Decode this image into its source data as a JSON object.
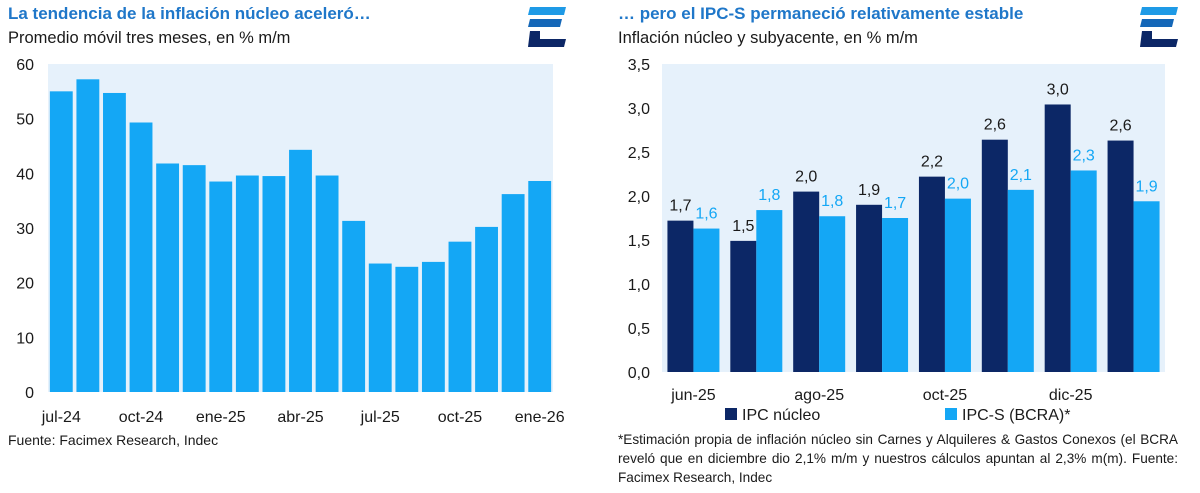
{
  "colors": {
    "title": "#1f77c9",
    "bright_blue": "#14a7f5",
    "navy": "#0c2766",
    "plot_bg": "#e6f1fb",
    "logo_top": "#1e9ae6",
    "logo_mid": "#1467b8",
    "logo_bot": "#0c2766"
  },
  "left": {
    "title": "La tendencia de la inflación núcleo aceleró…",
    "subtitle": "Promedio móvil tres meses, en % m/m",
    "logo": "facimex-logo-icon",
    "source": "Fuente: Facimex Research, Indec"
  },
  "right": {
    "title": "… pero el IPC-S permaneció relativamente estable",
    "subtitle": "Inflación núcleo y subyacente, en % m/m",
    "logo": "facimex-logo-icon",
    "note": "*Estimación propia de inflación núcleo sin Carnes y Alquileres & Gastos Conexos (el BCRA reveló que en diciembre dio 2,1% m/m y nuestros cálculos apuntan al 2,3% m(m). Fuente: Facimex Research, Indec"
  },
  "chart_data": [
    {
      "type": "bar",
      "title": "La tendencia de la inflación núcleo aceleró…",
      "subtitle": "Promedio móvil tres meses, en % m/m",
      "categories": [
        "jul-24",
        "ago-24",
        "sep-24",
        "oct-24",
        "nov-24",
        "dic-24",
        "ene-25",
        "feb-25",
        "mar-25",
        "abr-25",
        "may-25",
        "jun-25",
        "jul-25",
        "ago-25",
        "sep-25",
        "oct-25",
        "nov-25",
        "dic-25",
        "ene-26"
      ],
      "tick_labels": [
        "jul-24",
        "oct-24",
        "ene-25",
        "abr-25",
        "jul-25",
        "oct-25",
        "ene-26"
      ],
      "values": [
        55.0,
        57.2,
        54.7,
        49.3,
        41.8,
        41.5,
        38.5,
        39.6,
        39.5,
        44.3,
        39.6,
        31.3,
        23.5,
        22.9,
        23.8,
        27.5,
        30.2,
        36.2,
        38.6
      ],
      "yticks": [
        "0",
        "10",
        "20",
        "30",
        "40",
        "50",
        "60"
      ],
      "ylim": [
        0,
        60
      ],
      "xlabel": "",
      "ylabel": "",
      "grid": false
    },
    {
      "type": "bar",
      "title": "… pero el IPC-S permaneció relativamente estable",
      "subtitle": "Inflación núcleo y subyacente, en % m/m",
      "categories": [
        "jun-25",
        "jul-25",
        "ago-25",
        "sep-25",
        "oct-25",
        "nov-25",
        "dic-25",
        "ene-26"
      ],
      "tick_labels": [
        "jun-25",
        "ago-25",
        "oct-25",
        "dic-25"
      ],
      "series": [
        {
          "name": "IPC núcleo",
          "values": [
            1.72,
            1.49,
            2.05,
            1.9,
            2.22,
            2.64,
            3.04,
            2.63
          ],
          "labels": [
            "1,7",
            "1,5",
            "2,0",
            "1,9",
            "2,2",
            "2,6",
            "3,0",
            "2,6"
          ]
        },
        {
          "name": "IPC-S (BCRA)*",
          "values": [
            1.63,
            1.84,
            1.77,
            1.75,
            1.97,
            2.07,
            2.29,
            1.94
          ],
          "labels": [
            "1,6",
            "1,8",
            "1,8",
            "1,7",
            "2,0",
            "2,1",
            "2,3",
            "1,9"
          ]
        }
      ],
      "yticks": [
        "0,0",
        "0,5",
        "1,0",
        "1,5",
        "2,0",
        "2,5",
        "3,0",
        "3,5"
      ],
      "ylim": [
        0,
        3.5
      ],
      "legend": "bottom",
      "xlabel": "",
      "ylabel": "",
      "grid": false
    }
  ]
}
